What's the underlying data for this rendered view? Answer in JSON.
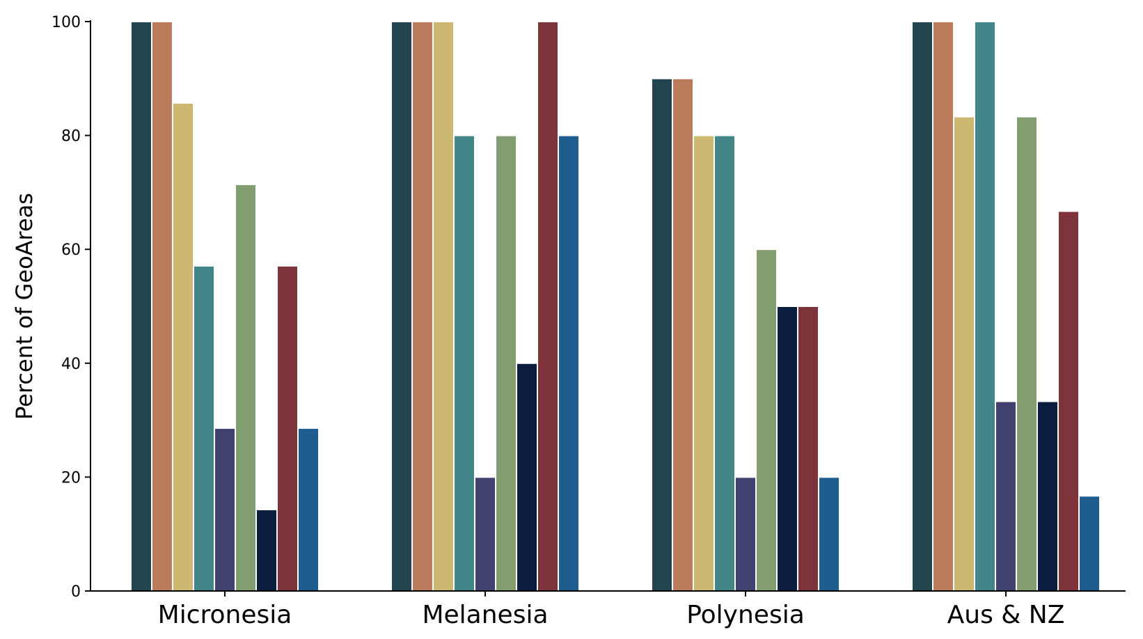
{
  "chart_data": {
    "type": "bar",
    "ylabel": "Percent of GeoAreas",
    "xlabel": "",
    "ylim": [
      0,
      100
    ],
    "yticks": [
      0,
      20,
      40,
      60,
      80,
      100
    ],
    "grid": false,
    "legend": "none",
    "categories": [
      "Micronesia",
      "Melanesia",
      "Polynesia",
      "Aus & NZ"
    ],
    "series": [
      {
        "color": "#21444f",
        "values": [
          100,
          100,
          90,
          100
        ]
      },
      {
        "color": "#b97b5c",
        "values": [
          100,
          100,
          90,
          100
        ]
      },
      {
        "color": "#cdb872",
        "values": [
          85.7,
          100,
          80,
          83.3
        ]
      },
      {
        "color": "#43868a",
        "values": [
          57.1,
          80,
          80,
          100
        ]
      },
      {
        "color": "#414270",
        "values": [
          28.6,
          20,
          20,
          33.3
        ]
      },
      {
        "color": "#829e70",
        "values": [
          71.4,
          80,
          60,
          83.3
        ]
      },
      {
        "color": "#0c1e3f",
        "values": [
          14.3,
          40,
          50,
          33.3
        ]
      },
      {
        "color": "#7e323a",
        "values": [
          57.1,
          100,
          50,
          66.7
        ]
      },
      {
        "color": "#1d5e8e",
        "values": [
          28.6,
          80,
          20,
          16.7
        ]
      }
    ]
  }
}
